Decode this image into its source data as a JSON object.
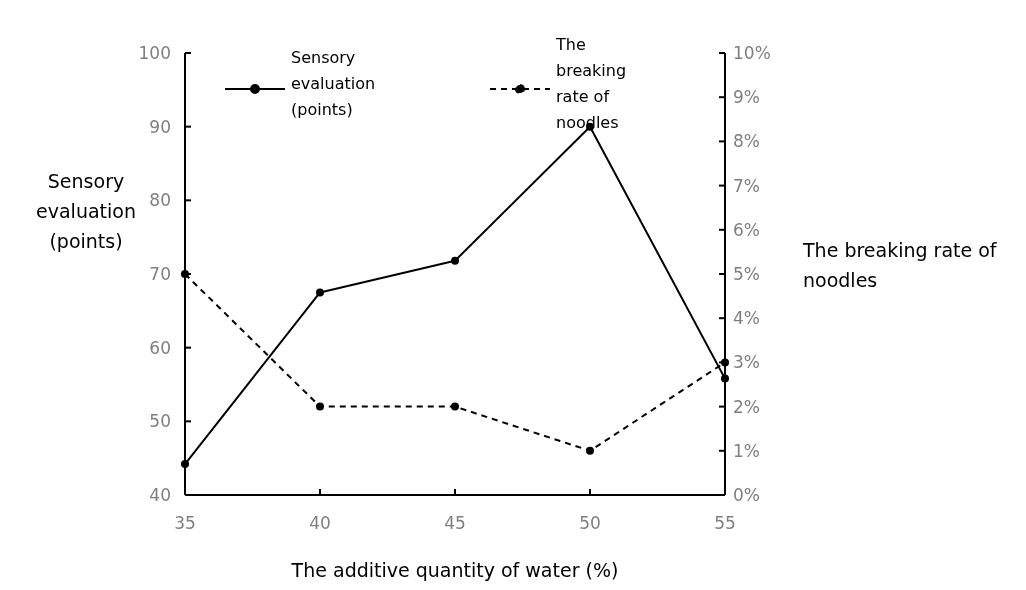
{
  "chart_data": {
    "type": "line",
    "xlabel": "The additive quantity of water (%)",
    "ylabel": "Sensory evaluation (points)",
    "y2label": "The breaking rate of noodles",
    "x": [
      35,
      40,
      45,
      50,
      55
    ],
    "xlim": [
      35,
      55
    ],
    "xticks": [
      35,
      40,
      45,
      50,
      55
    ],
    "ylim": [
      40,
      100
    ],
    "yticks": [
      40,
      50,
      60,
      70,
      80,
      90,
      100
    ],
    "y2lim": [
      0,
      10
    ],
    "y2ticks": [
      {
        "value": 0,
        "label": "0%"
      },
      {
        "value": 1,
        "label": "1%"
      },
      {
        "value": 2,
        "label": "2%"
      },
      {
        "value": 3,
        "label": "3%"
      },
      {
        "value": 4,
        "label": "4%"
      },
      {
        "value": 5,
        "label": "5%"
      },
      {
        "value": 6,
        "label": "6%"
      },
      {
        "value": 7,
        "label": "7%"
      },
      {
        "value": 8,
        "label": "8%"
      },
      {
        "value": 9,
        "label": "9%"
      },
      {
        "value": 10,
        "label": "10%"
      }
    ],
    "series": [
      {
        "name": "Sensory evaluation (points)",
        "color": "#000000",
        "line_style": "solid",
        "values": [
          44.2,
          67.5,
          71.8,
          90,
          55.8
        ]
      },
      {
        "name": "The breaking rate of noodles",
        "color": "#000000",
        "line_style": "dashed",
        "axis": "y2",
        "values": [
          5,
          2,
          2,
          1,
          3
        ]
      }
    ],
    "marker": "circle",
    "grid": false,
    "legend": "top"
  }
}
